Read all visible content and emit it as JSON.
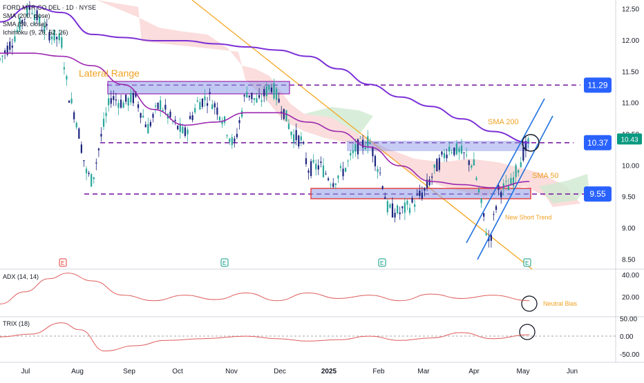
{
  "legend": {
    "symbol": "FORD MTR CO DEL · 1D · NYSE",
    "sma200": "SMA (200, close)",
    "sma50": "SMA (50, close)",
    "ichimoku": "Ichimoku (9, 26, 52, 26)"
  },
  "colors": {
    "sma200": "#7b2fd6",
    "sma50": "#9c27b0",
    "trend_blue": "#1e6fe0",
    "downtrend": "#f5a623",
    "bull_candle": "#26a69a",
    "bear_candle": "#1a237e",
    "level_dash": "#7b1fa2",
    "cloud_red": "#f8c8c4",
    "cloud_green": "#c8e6c9",
    "indicator_line": "#e05a5a",
    "annotation": "#f0a020",
    "badge_blue": "#2962ff",
    "badge_green": "#089981",
    "range_box": "#8e9ae8",
    "red_box": "#e53935"
  },
  "annotations": {
    "lateral_range": "Lateral Range",
    "sma200_label": "SMA 200",
    "sma50_label": "SMA 50",
    "new_short_trend": "New Short Trend",
    "neutral_bias": "Neutral Bias"
  },
  "events": {
    "earnings": "E",
    "dividend": "E"
  },
  "chart_data": [
    {
      "type": "line",
      "title": "FORD MTR CO DEL · 1D · NYSE",
      "x_ticks": [
        "Jul",
        "Aug",
        "Sep",
        "Oct",
        "Nov",
        "Dec",
        "2025",
        "Feb",
        "Mar",
        "Apr",
        "May",
        "Jun"
      ],
      "y_ticks": [
        12.5,
        12.0,
        11.5,
        11.0,
        10.5,
        10.0,
        9.5,
        9.0,
        8.5
      ],
      "ylim": [
        8.35,
        12.65
      ],
      "levels": [
        {
          "label": "11.29",
          "value": 11.29
        },
        {
          "label": "10.37",
          "value": 10.37
        },
        {
          "label": "9.55",
          "value": 9.55
        }
      ],
      "last_price": {
        "label": "10.43",
        "value": 10.43
      },
      "series": [
        {
          "name": "SMA 200",
          "x": [
            0,
            0.05,
            0.1,
            0.15,
            0.2,
            0.25,
            0.3,
            0.35,
            0.4,
            0.45,
            0.5,
            0.55,
            0.6,
            0.65,
            0.7,
            0.75,
            0.8,
            0.86
          ],
          "values": [
            12.3,
            12.55,
            12.45,
            12.1,
            12.05,
            12.0,
            12.0,
            11.95,
            11.9,
            11.85,
            11.75,
            11.55,
            11.3,
            11.1,
            10.95,
            10.75,
            10.55,
            10.37
          ]
        },
        {
          "name": "SMA 50",
          "x": [
            0,
            0.05,
            0.1,
            0.15,
            0.2,
            0.25,
            0.3,
            0.35,
            0.4,
            0.45,
            0.5,
            0.55,
            0.6,
            0.65,
            0.7,
            0.75,
            0.8,
            0.86
          ],
          "values": [
            11.8,
            11.8,
            11.75,
            11.6,
            11.3,
            10.9,
            10.65,
            10.7,
            10.85,
            10.85,
            10.7,
            10.55,
            10.3,
            10.0,
            9.75,
            9.7,
            9.65,
            9.75
          ]
        }
      ]
    },
    {
      "type": "line",
      "title": "ADX (14, 14)",
      "y_ticks": [
        40.0,
        20.0
      ],
      "ylim": [
        3,
        45
      ],
      "series": [
        {
          "name": "ADX",
          "x": [
            0,
            0.04,
            0.08,
            0.11,
            0.15,
            0.2,
            0.25,
            0.3,
            0.35,
            0.4,
            0.45,
            0.5,
            0.55,
            0.6,
            0.65,
            0.7,
            0.75,
            0.8,
            0.86
          ],
          "values": [
            14,
            25,
            37,
            42,
            35,
            22,
            17,
            22,
            18,
            24,
            17,
            24,
            19,
            22,
            17,
            23,
            19,
            22,
            17
          ]
        }
      ]
    },
    {
      "type": "line",
      "title": "TRIX (18)",
      "y_ticks": [
        50.0,
        0.0,
        -50.0
      ],
      "ylim": [
        -70,
        55
      ],
      "series": [
        {
          "name": "TRIX",
          "x": [
            0,
            0.05,
            0.1,
            0.13,
            0.17,
            0.22,
            0.27,
            0.33,
            0.4,
            0.45,
            0.5,
            0.55,
            0.6,
            0.65,
            0.7,
            0.75,
            0.8,
            0.86
          ],
          "values": [
            0,
            8,
            40,
            20,
            -40,
            -25,
            -10,
            -5,
            2,
            -5,
            -12,
            -8,
            2,
            -10,
            -3,
            12,
            -5,
            6
          ]
        }
      ]
    }
  ]
}
